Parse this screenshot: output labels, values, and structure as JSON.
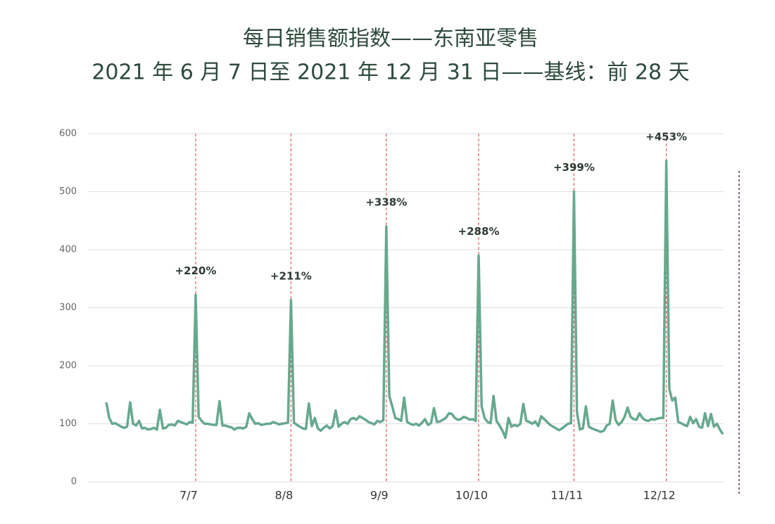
{
  "chart_data": {
    "type": "line",
    "title": "每日销售额指数——东南亚零售",
    "subtitle": "2021 年 6 月 7 日至 2021 年 12 月 31 日——基线：前 28 天",
    "categories": [
      null,
      null,
      null,
      null,
      null,
      null,
      null,
      null,
      null,
      null,
      null,
      null,
      null,
      null,
      null,
      null,
      null,
      null,
      null,
      null,
      null,
      null,
      null,
      null,
      null,
      null,
      null,
      null,
      null,
      null,
      "7/7",
      null,
      null,
      null,
      null,
      null,
      null,
      null,
      null,
      null,
      null,
      null,
      null,
      null,
      null,
      null,
      null,
      null,
      null,
      null,
      null,
      null,
      null,
      null,
      null,
      null,
      null,
      null,
      null,
      null,
      null,
      null,
      "8/8",
      null,
      null,
      null,
      null,
      null,
      null,
      null,
      null,
      null,
      null,
      null,
      null,
      null,
      null,
      null,
      null,
      null,
      null,
      null,
      null,
      null,
      null,
      null,
      null,
      null,
      null,
      null,
      null,
      null,
      null,
      null,
      "9/9",
      null,
      null,
      null,
      null,
      null,
      null,
      null,
      null,
      null,
      null,
      null,
      null,
      null,
      null,
      null,
      null,
      null,
      null,
      null,
      null,
      null,
      null,
      null,
      null,
      null,
      null,
      null,
      null,
      null,
      null,
      "10/10",
      null,
      null,
      null,
      null,
      null,
      null,
      null,
      null,
      null,
      null,
      null,
      null,
      null,
      null,
      null,
      null,
      null,
      null,
      null,
      null,
      null,
      null,
      null,
      null,
      null,
      null,
      null,
      null,
      null,
      null,
      null,
      "11/11",
      null,
      null,
      null,
      null,
      null,
      null,
      null,
      null,
      null,
      null,
      null,
      null,
      null,
      null,
      null,
      null,
      null,
      null,
      null,
      null,
      null,
      null,
      null,
      null,
      null,
      null,
      null,
      null,
      null,
      null,
      "12/12",
      null,
      null,
      null,
      null,
      null,
      null,
      null,
      null,
      null,
      null,
      null,
      null,
      null,
      null,
      null,
      null,
      null,
      null,
      null
    ],
    "series": [
      {
        "color": "#66a98e",
        "values": [
          137,
          110,
          100,
          101,
          98,
          95,
          93,
          95,
          137,
          100,
          97,
          105,
          92,
          93,
          90,
          91,
          93,
          90,
          124,
          92,
          93,
          98,
          99,
          97,
          105,
          103,
          101,
          99,
          103,
          102,
          322,
          112,
          105,
          100,
          100,
          99,
          98,
          98,
          139,
          97,
          97,
          95,
          94,
          90,
          93,
          93,
          92,
          95,
          118,
          108,
          100,
          101,
          98,
          99,
          100,
          100,
          103,
          101,
          99,
          100,
          101,
          102,
          313,
          102,
          98,
          95,
          92,
          91,
          135,
          96,
          110,
          92,
          88,
          93,
          97,
          92,
          96,
          123,
          95,
          100,
          103,
          100,
          108,
          110,
          107,
          113,
          110,
          107,
          103,
          101,
          99,
          105,
          103,
          106,
          440,
          148,
          130,
          110,
          108,
          105,
          145,
          103,
          100,
          98,
          100,
          97,
          102,
          108,
          98,
          101,
          127,
          103,
          104,
          107,
          110,
          118,
          117,
          110,
          107,
          108,
          112,
          110,
          107,
          108,
          105,
          390,
          130,
          110,
          103,
          101,
          148,
          105,
          97,
          88,
          76,
          110,
          95,
          98,
          96,
          100,
          134,
          105,
          103,
          100,
          104,
          96,
          113,
          108,
          103,
          98,
          95,
          92,
          89,
          92,
          96,
          100,
          101,
          500,
          120,
          90,
          92,
          130,
          95,
          92,
          90,
          88,
          86,
          88,
          97,
          100,
          140,
          106,
          98,
          103,
          112,
          128,
          112,
          108,
          107,
          118,
          110,
          106,
          105,
          108,
          107,
          109,
          110,
          110,
          553,
          160,
          140,
          145,
          103,
          101,
          98,
          96,
          112,
          101,
          108,
          95,
          93,
          118,
          96,
          117,
          95,
          100,
          90,
          82
        ]
      }
    ],
    "annotations": [
      {
        "category": "7/7",
        "text": "+220%"
      },
      {
        "category": "8/8",
        "text": "+211%"
      },
      {
        "category": "9/9",
        "text": "+338%"
      },
      {
        "category": "10/10",
        "text": "+288%"
      },
      {
        "category": "11/11",
        "text": "+399%"
      },
      {
        "category": "12/12",
        "text": "+453%"
      }
    ],
    "annotation_color": "#e06060",
    "ylim": [
      0,
      600
    ],
    "yticks": [
      0,
      100,
      200,
      300,
      400,
      500,
      600
    ],
    "grid": true
  }
}
